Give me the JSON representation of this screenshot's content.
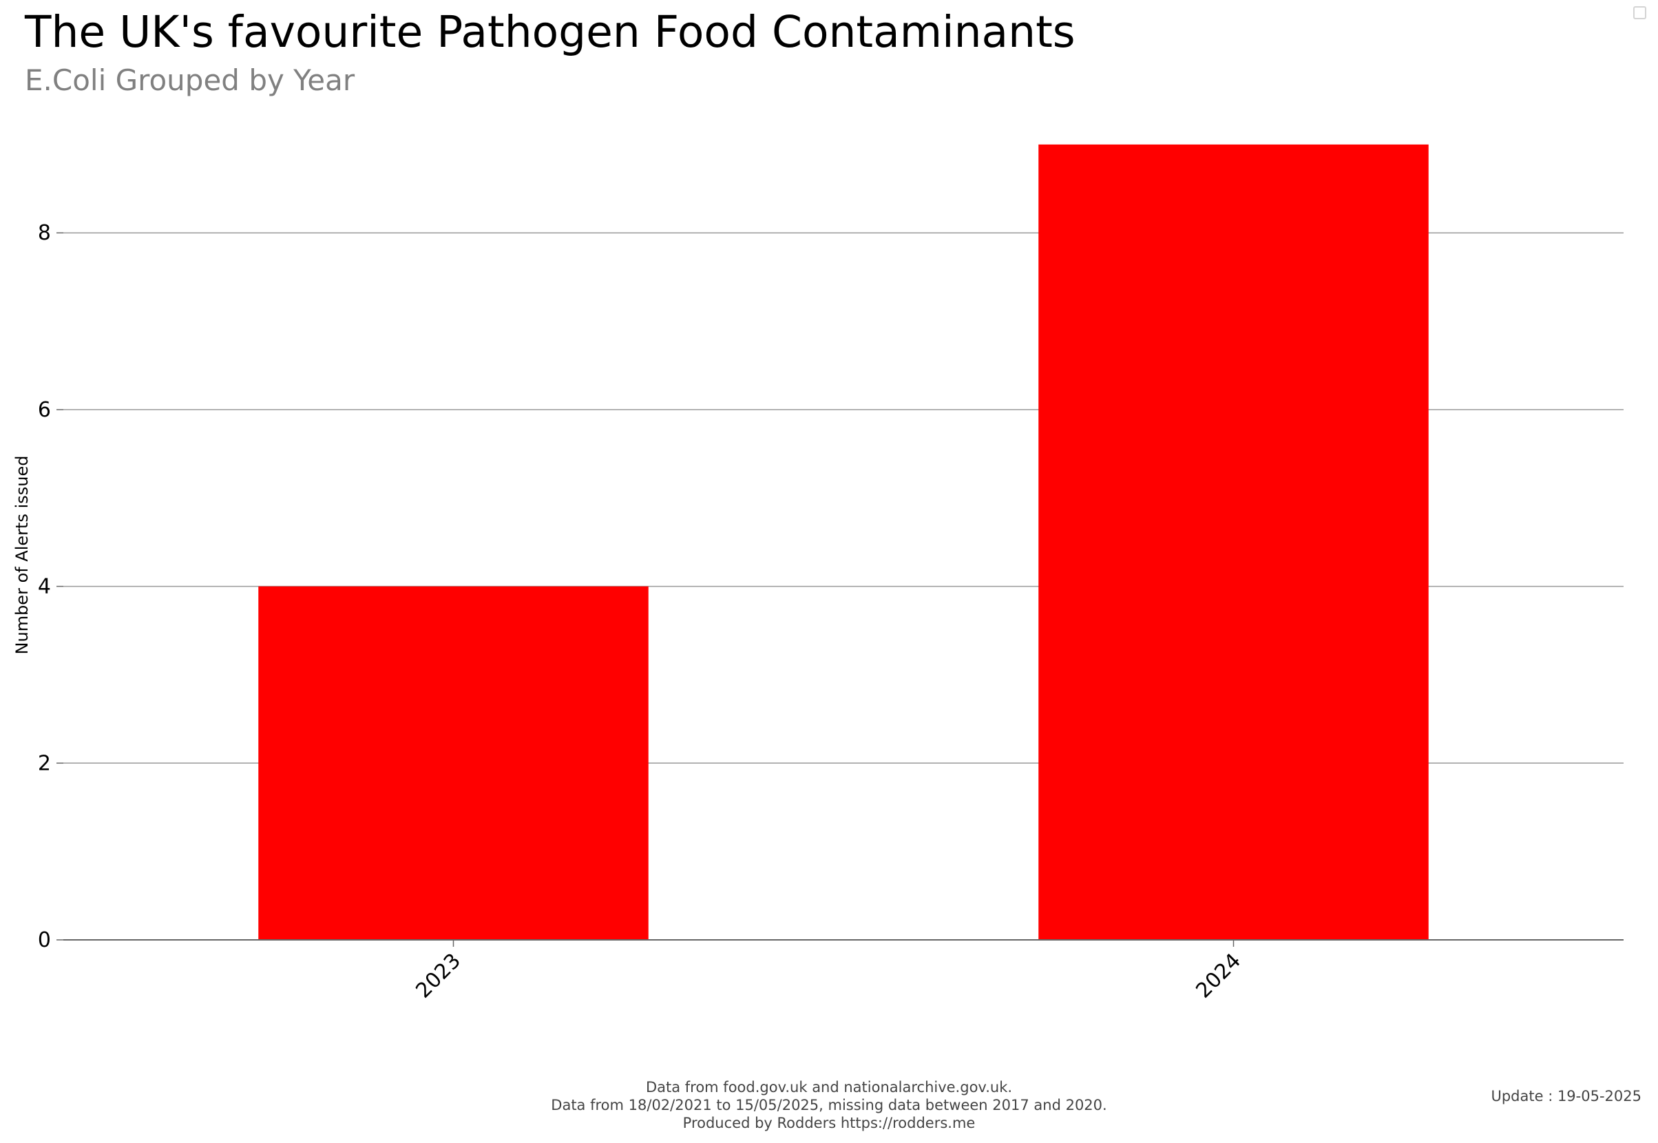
{
  "title": "The UK's favourite Pathogen Food Contaminants",
  "subtitle": "E.Coli Grouped by Year",
  "footer": {
    "line1": "Data from food.gov.uk and nationalarchive.gov.uk.",
    "line2": "Data from 18/02/2021 to 15/05/2025, missing data between 2017 and 2020.",
    "line3": "Produced by Rodders https://rodders.me"
  },
  "update": "Update : 19-05-2025",
  "colors": {
    "bar": "#ff0000",
    "grid": "#999999",
    "axis": "#666666"
  },
  "chart_data": {
    "type": "bar",
    "title": "The UK's favourite Pathogen Food Contaminants",
    "subtitle": "E.Coli Grouped by Year",
    "categories": [
      "2023",
      "2024"
    ],
    "values": [
      4,
      9
    ],
    "xlabel": "",
    "ylabel": "Number of Alerts issued",
    "ylim": [
      0,
      9.7
    ],
    "yticks": [
      0,
      2,
      4,
      6,
      8
    ],
    "grid": true,
    "legend": "none"
  }
}
